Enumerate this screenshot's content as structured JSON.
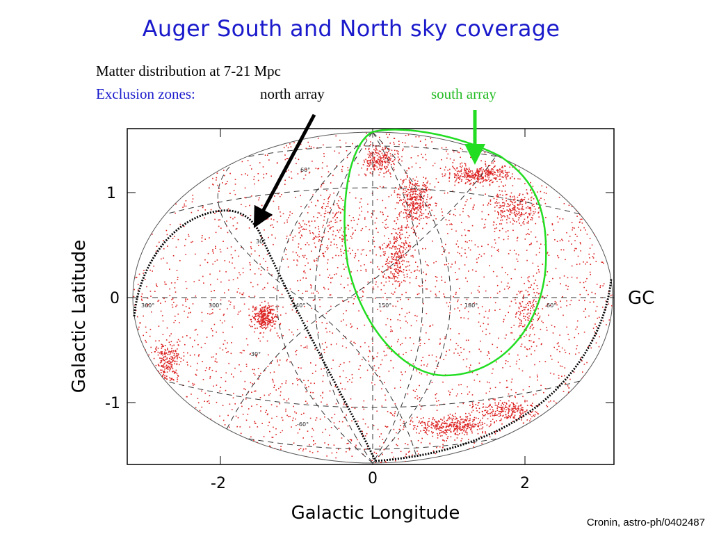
{
  "header": {
    "title": "Auger South and North sky coverage",
    "line1": "Matter distribution at 7-21 Mpc",
    "exclusion_label": "Exclusion zones:",
    "north_label": "north array",
    "south_label": "south array"
  },
  "credit": "Cronin, astro-ph/0402487",
  "chart_data": {
    "type": "scatter",
    "projection": "aitoff",
    "xlabel": "Galactic Longitude",
    "ylabel": "Galactic Latitude",
    "x_ticks": [
      "-2",
      "0",
      "2"
    ],
    "y_ticks": [
      "1",
      "0",
      "-1"
    ],
    "xlim": [
      -3.14,
      3.14
    ],
    "ylim": [
      -1.57,
      1.57
    ],
    "annotation": "GC",
    "grid_labels": [
      "60°",
      "30°",
      "-30°",
      "-60°",
      "360°",
      "300°",
      "240°",
      "150°",
      "180°",
      "60°"
    ],
    "point_color": "#dd2020",
    "south_array_color": "#22dd22",
    "north_array_color": "#000000"
  }
}
